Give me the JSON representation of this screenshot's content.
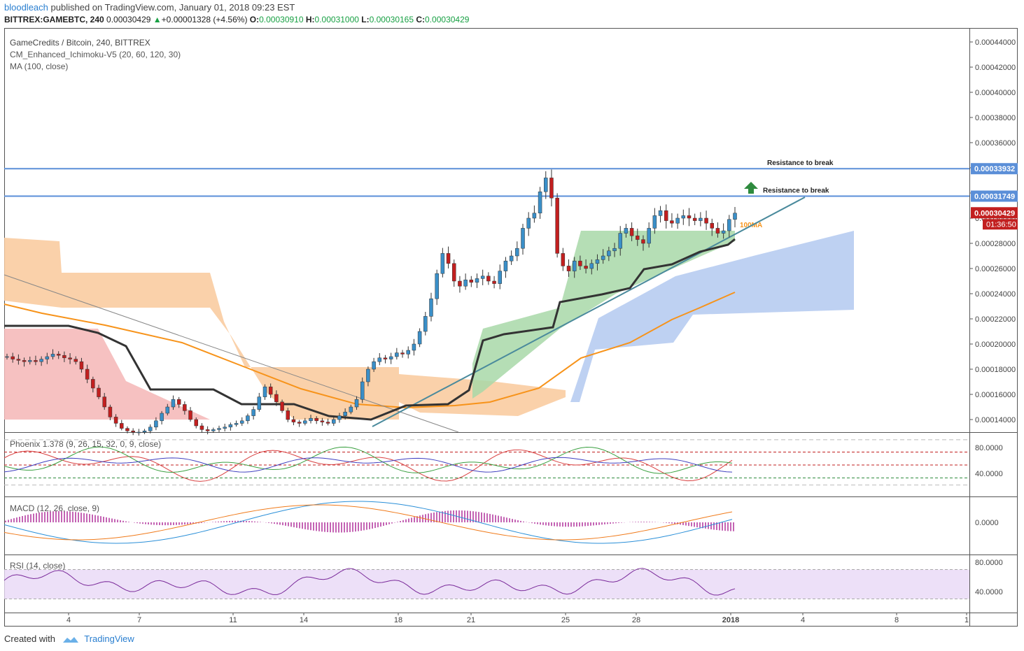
{
  "header": {
    "user": "bloodleach",
    "published": "published on TradingView.com, January 01, 2018 09:23 EST",
    "symbol": "BITTREX:GAMEBTC, 240",
    "last": "0.00030429",
    "change": "+0.00001328 (+4.56%)",
    "o_label": "O:",
    "o": "0.00030910",
    "h_label": "H:",
    "h": "0.00031000",
    "l_label": "L:",
    "l": "0.00030165",
    "c_label": "C:",
    "c": "0.00030429"
  },
  "footer": {
    "created_with": "Created with",
    "brand": "TradingView"
  },
  "colors": {
    "up": "#3a8fc8",
    "down": "#c21f1f",
    "ma": "#f7931a",
    "trend": "#4a8a9c",
    "resistance": "#5b8fd8",
    "kijun": "#333333",
    "cloud_green": "#a8d8a8",
    "cloud_red": "#f4b6b6",
    "cloud_orange": "#f9c99b",
    "cloud_blue": "#b3c9f0"
  },
  "chart_data": [
    {
      "type": "candlestick",
      "title": "GameCredits / Bitcoin, 240, BITTREX",
      "legend": [
        "CM_Enhanced_Ichimoku-V5 (20, 60, 120, 30)",
        "MA (100, close)"
      ],
      "x_ticks": [
        "4",
        "7",
        "11",
        "14",
        "18",
        "21",
        "25",
        "28",
        "2018",
        "4",
        "8",
        "1"
      ],
      "y_ticks": [
        "0.00044000",
        "0.00042000",
        "0.00040000",
        "0.00038000",
        "0.00036000",
        "0.00034000",
        "0.00032000",
        "0.00030000",
        "0.00028000",
        "0.00026000",
        "0.00024000",
        "0.00022000",
        "0.00020000",
        "0.00018000",
        "0.00016000",
        "0.00014000"
      ],
      "ylim": [
        0.00013,
        0.00045
      ],
      "price_labels": [
        {
          "value": 0.00033932,
          "label": "0.00033932",
          "color": "#5b8fd8"
        },
        {
          "value": 0.00031749,
          "label": "0.00031749",
          "color": "#5b8fd8"
        },
        {
          "value": 0.00030429,
          "label": "0.00030429",
          "color": "#c21f1f"
        }
      ],
      "countdown": "01:36:50",
      "resistance_lines": [
        {
          "value": 0.00033932,
          "annotation": "Resistance to break"
        },
        {
          "value": 0.00031749,
          "annotation": "Resistance to break"
        }
      ],
      "ma_annotation": "100MA",
      "close_series": [
        0.00019,
        0.000188,
        0.000187,
        0.000186,
        0.000187,
        0.000186,
        0.000188,
        0.00019,
        0.000192,
        0.000191,
        0.000189,
        0.000188,
        0.000186,
        0.00018,
        0.000172,
        0.000165,
        0.000158,
        0.00015,
        0.000142,
        0.000137,
        0.000133,
        0.000131,
        0.00013,
        0.00013,
        0.000131,
        0.000134,
        0.000139,
        0.000145,
        0.00015,
        0.000156,
        0.000152,
        0.000147,
        0.00014,
        0.000135,
        0.000132,
        0.000131,
        0.000132,
        0.000133,
        0.000134,
        0.000136,
        0.000137,
        0.000139,
        0.000143,
        0.000148,
        0.000158,
        0.000166,
        0.00016,
        0.000154,
        0.000147,
        0.00014,
        0.000138,
        0.000137,
        0.000139,
        0.000141,
        0.000139,
        0.000138,
        0.000137,
        0.00014,
        0.000143,
        0.000146,
        0.00015,
        0.000156,
        0.00017,
        0.00018,
        0.000186,
        0.000189,
        0.000188,
        0.00019,
        0.000193,
        0.000192,
        0.000195,
        0.0002,
        0.00021,
        0.000222,
        0.000236,
        0.000256,
        0.000272,
        0.000264,
        0.00025,
        0.000246,
        0.000251,
        0.000249,
        0.000252,
        0.000254,
        0.00025,
        0.000248,
        0.000258,
        0.000266,
        0.00027,
        0.000276,
        0.000292,
        0.0003,
        0.000304,
        0.000321,
        0.000332,
        0.000316,
        0.000272,
        0.000262,
        0.000258,
        0.000266,
        0.000262,
        0.00026,
        0.000264,
        0.000267,
        0.00027,
        0.000274,
        0.000276,
        0.000288,
        0.000292,
        0.000286,
        0.000283,
        0.00028,
        0.000292,
        0.000302,
        0.000306,
        0.000298,
        0.000296,
        0.0003,
        0.000302,
        0.0003,
        0.000298,
        0.0003,
        0.000296,
        0.000292,
        0.000288,
        0.00029,
        0.000299,
        0.000304
      ]
    },
    {
      "type": "line",
      "title": "Phoenix 1.378 (9, 26, 15, 32, 0, 9, close)",
      "y_ticks": [
        "80.0000",
        "40.0000"
      ]
    },
    {
      "type": "line",
      "title": "MACD (12, 26, close, 9)",
      "y_ticks": [
        "0.0000"
      ]
    },
    {
      "type": "line",
      "title": "RSI (14, close)",
      "y_ticks": [
        "80.0000",
        "40.0000"
      ]
    }
  ]
}
